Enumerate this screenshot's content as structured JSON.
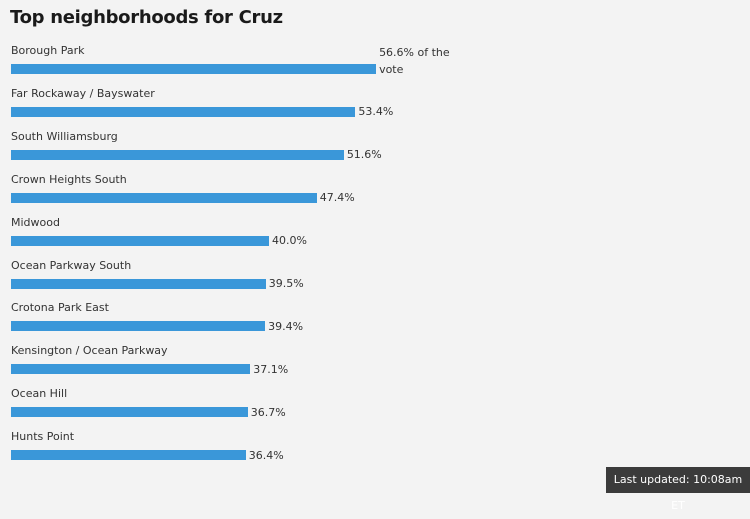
{
  "chart_data": {
    "type": "bar",
    "orientation": "horizontal",
    "title": "Top neighborhoods for Cruz",
    "categories": [
      "Borough Park",
      "Far Rockaway / Bayswater",
      "South Williamsburg",
      "Crown Heights South",
      "Midwood",
      "Ocean Parkway South",
      "Crotona Park East",
      "Kensington / Ocean Parkway",
      "Ocean Hill",
      "Hunts Point"
    ],
    "values": [
      56.6,
      53.4,
      51.6,
      47.4,
      40.0,
      39.5,
      39.4,
      37.1,
      36.7,
      36.4
    ],
    "value_labels": [
      "56.6% of the vote",
      "53.4%",
      "51.6%",
      "47.4%",
      "40.0%",
      "39.5%",
      "39.4%",
      "37.1%",
      "36.7%",
      "36.4%"
    ],
    "color": "#3a97d9"
  },
  "footer": {
    "text": "Last updated: 10:08am ET"
  }
}
